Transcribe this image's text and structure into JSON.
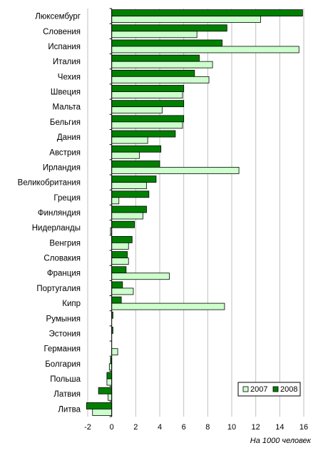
{
  "chart_data": {
    "type": "bar",
    "orientation": "horizontal",
    "categories": [
      "Люксембург",
      "Словения",
      "Испания",
      "Италия",
      "Чехия",
      "Швеция",
      "Мальта",
      "Бельгия",
      "Дания",
      "Австрия",
      "Ирландия",
      "Великобритания",
      "Греция",
      "Финляндия",
      "Нидерланды",
      "Венгрия",
      "Словакия",
      "Франция",
      "Португалия",
      "Кипр",
      "Румыния",
      "Эстония",
      "Германия",
      "Болгария",
      "Польша",
      "Латвия",
      "Литва"
    ],
    "series": [
      {
        "name": "2007",
        "color": "#ccffcc",
        "values": [
          12.4,
          7.1,
          15.6,
          8.4,
          8.1,
          5.9,
          4.2,
          5.9,
          3.0,
          2.3,
          10.6,
          2.9,
          0.6,
          2.6,
          -0.1,
          1.4,
          1.4,
          4.8,
          1.8,
          9.4,
          0.0,
          0.0,
          0.5,
          -0.2,
          -0.4,
          -0.3,
          -1.6
        ]
      },
      {
        "name": "2008",
        "color": "#008000",
        "values": [
          15.9,
          9.6,
          9.2,
          7.3,
          6.9,
          6.0,
          6.0,
          6.0,
          5.3,
          4.1,
          4.0,
          3.7,
          3.1,
          2.9,
          1.9,
          1.7,
          1.3,
          1.2,
          0.9,
          0.8,
          0.1,
          0.1,
          0.0,
          -0.1,
          -0.4,
          -1.1,
          -2.1
        ]
      }
    ],
    "xlim": [
      -2,
      16
    ],
    "xticks": [
      "-2",
      "0",
      "2",
      "4",
      "6",
      "8",
      "10",
      "12",
      "14",
      "16"
    ],
    "xlabel": "На 1000 человек",
    "grid": "vertical",
    "legend": "bottom-right"
  }
}
